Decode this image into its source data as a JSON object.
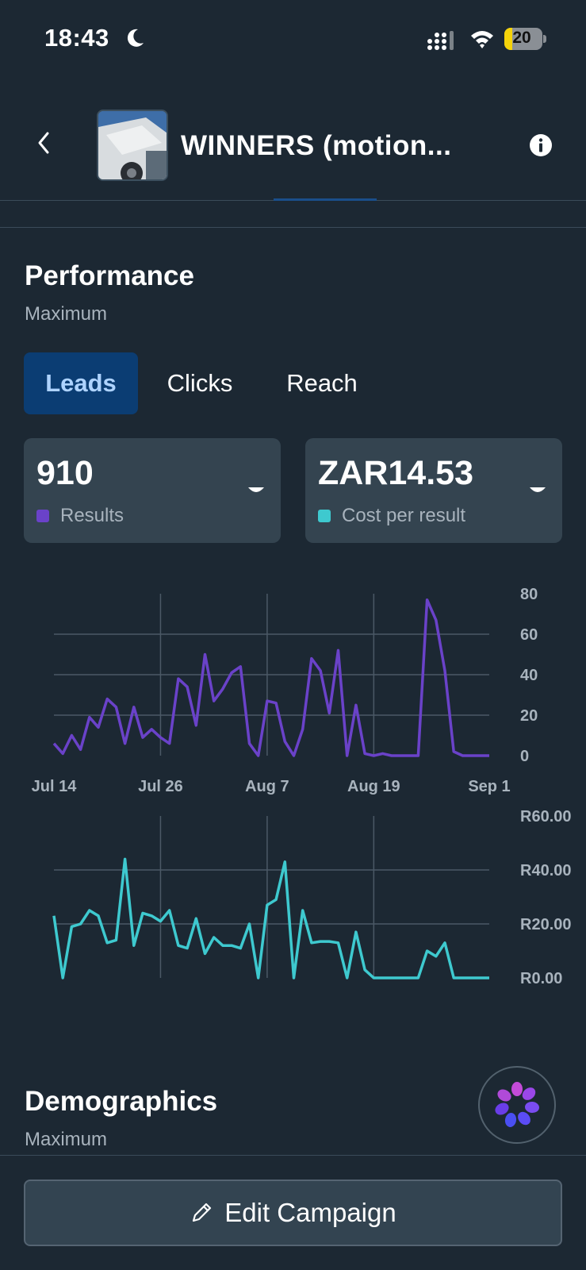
{
  "status_bar": {
    "time": "18:43",
    "battery": "20",
    "battery_level": 0.2
  },
  "header": {
    "title": "WINNERS  (motion..."
  },
  "performance": {
    "title": "Performance",
    "subtitle": "Maximum",
    "tabs": [
      {
        "label": "Leads",
        "active": true
      },
      {
        "label": "Clicks",
        "active": false
      },
      {
        "label": "Reach",
        "active": false
      }
    ],
    "cards": [
      {
        "value": "910",
        "label": "Results",
        "color": "#6a42c9"
      },
      {
        "value": "ZAR14.53",
        "label": "Cost per result",
        "color": "#3ec9cf"
      }
    ]
  },
  "chart_data": [
    {
      "type": "line",
      "x_ticks": [
        "Jul 14",
        "Jul 26",
        "Aug 7",
        "Aug 19",
        "Sep 1"
      ],
      "y_ticks": [
        "80",
        "60",
        "40",
        "20",
        "0"
      ],
      "ylim": [
        0,
        80
      ],
      "grid": true,
      "color": "#6a42c9",
      "series": [
        {
          "x": [
            "Jul 14",
            "Jul 15",
            "Jul 16",
            "Jul 17",
            "Jul 18",
            "Jul 19",
            "Jul 20",
            "Jul 21",
            "Jul 22",
            "Jul 23",
            "Jul 24",
            "Jul 25",
            "Jul 26",
            "Jul 27",
            "Jul 28",
            "Jul 29",
            "Jul 30",
            "Jul 31",
            "Aug 1",
            "Aug 2",
            "Aug 3",
            "Aug 4",
            "Aug 5",
            "Aug 6",
            "Aug 7",
            "Aug 8",
            "Aug 9",
            "Aug 10",
            "Aug 11",
            "Aug 12",
            "Aug 13",
            "Aug 14",
            "Aug 15",
            "Aug 16",
            "Aug 17",
            "Aug 18",
            "Aug 19",
            "Aug 20",
            "Aug 21",
            "Aug 22",
            "Aug 23",
            "Aug 24",
            "Aug 25",
            "Aug 26",
            "Aug 27",
            "Aug 28",
            "Aug 29",
            "Aug 30",
            "Aug 31",
            "Sep 1"
          ],
          "values": [
            6,
            1,
            10,
            3,
            19,
            14,
            28,
            24,
            6,
            24,
            9,
            13,
            9,
            6,
            38,
            34,
            15,
            50,
            27,
            33,
            41,
            44,
            6,
            0,
            27,
            26,
            7,
            0,
            13,
            48,
            42,
            21,
            52,
            0,
            25,
            1,
            0,
            1,
            0,
            0,
            0,
            0,
            77,
            67,
            42,
            2,
            0,
            0,
            0,
            0
          ]
        }
      ]
    },
    {
      "type": "line",
      "x_ticks": [
        "Jul 14",
        "Jul 26",
        "Aug 7",
        "Aug 19",
        "Sep 1"
      ],
      "y_ticks": [
        "R60.00",
        "R40.00",
        "R20.00",
        "R0.00"
      ],
      "ylim": [
        0,
        60
      ],
      "grid": true,
      "color": "#3ec9cf",
      "series": [
        {
          "x": [
            "Jul 14",
            "Jul 15",
            "Jul 16",
            "Jul 17",
            "Jul 18",
            "Jul 19",
            "Jul 20",
            "Jul 21",
            "Jul 22",
            "Jul 23",
            "Jul 24",
            "Jul 25",
            "Jul 26",
            "Jul 27",
            "Jul 28",
            "Jul 29",
            "Jul 30",
            "Jul 31",
            "Aug 1",
            "Aug 2",
            "Aug 3",
            "Aug 4",
            "Aug 5",
            "Aug 6",
            "Aug 7",
            "Aug 8",
            "Aug 9",
            "Aug 10",
            "Aug 11",
            "Aug 12",
            "Aug 13",
            "Aug 14",
            "Aug 15",
            "Aug 16",
            "Aug 17",
            "Aug 18",
            "Aug 19",
            "Aug 20",
            "Aug 21",
            "Aug 22",
            "Aug 23",
            "Aug 24",
            "Aug 25",
            "Aug 26",
            "Aug 27",
            "Aug 28",
            "Aug 29",
            "Aug 30",
            "Aug 31",
            "Sep 1"
          ],
          "values": [
            23,
            0,
            19,
            20,
            25,
            23,
            13,
            14,
            44,
            12,
            24,
            23,
            21,
            25,
            12,
            11,
            22,
            9,
            15,
            12,
            12,
            11,
            20,
            0,
            27,
            29,
            43,
            0,
            25,
            13,
            13.5,
            13.5,
            13,
            0,
            17,
            3,
            0,
            0,
            0,
            0,
            0,
            0,
            10,
            8,
            13,
            0,
            0,
            0,
            0,
            0
          ]
        }
      ]
    }
  ],
  "demographics": {
    "title": "Demographics",
    "subtitle": "Maximum"
  },
  "footer": {
    "edit_label": "Edit Campaign"
  },
  "icons": {
    "back": "chevron-left-icon",
    "info": "info-icon",
    "moon": "moon-icon",
    "signal": "signal-icon",
    "wifi": "wifi-icon",
    "caret": "caret-down-icon",
    "ai": "meta-ai-icon",
    "pencil": "pencil-icon"
  }
}
